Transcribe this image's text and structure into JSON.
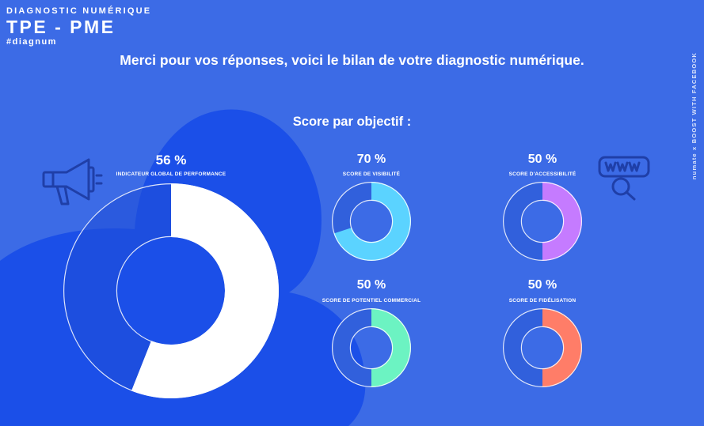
{
  "header": {
    "kicker": "DIAGNOSTIC NUMÉRIQUE",
    "title": "TPE - PME",
    "hashtag": "#diagnum"
  },
  "intro_text": "Merci pour vos réponses, voici le bilan de votre diagnostic numérique.",
  "subhead": "Score par objectif :",
  "side_credit": "numate  x  BOOST WITH FACEBOOK",
  "colors": {
    "background": "#3c6be6",
    "blob": "#1b4fe8",
    "ring_base": "#3160dc",
    "visibilite": "#5bd3ff",
    "accessibilite": "#c57bff",
    "potentiel": "#6cf3c2",
    "fidelisation": "#ff7d68",
    "global": "#ffffff"
  },
  "icons": {
    "megaphone": "megaphone-icon",
    "www": "www-search-icon"
  },
  "chart_data": [
    {
      "type": "pie",
      "id": "global",
      "title": "INDICATEUR GLOBAL DE PERFORMANCE",
      "label": "56 %",
      "value": 56,
      "color": "#ffffff"
    },
    {
      "type": "pie",
      "id": "visibilite",
      "title": "SCORE DE VISIBILITÉ",
      "label": "70 %",
      "value": 70,
      "color": "#5bd3ff"
    },
    {
      "type": "pie",
      "id": "accessibilite",
      "title": "SCORE D'ACCESSIBILITÉ",
      "label": "50 %",
      "value": 50,
      "color": "#c57bff"
    },
    {
      "type": "pie",
      "id": "potentiel",
      "title": "SCORE DE POTENTIEL COMMERCIAL",
      "label": "50 %",
      "value": 50,
      "color": "#6cf3c2"
    },
    {
      "type": "pie",
      "id": "fidelisation",
      "title": "SCORE DE FIDÉLISATION",
      "label": "50 %",
      "value": 50,
      "color": "#ff7d68"
    }
  ]
}
